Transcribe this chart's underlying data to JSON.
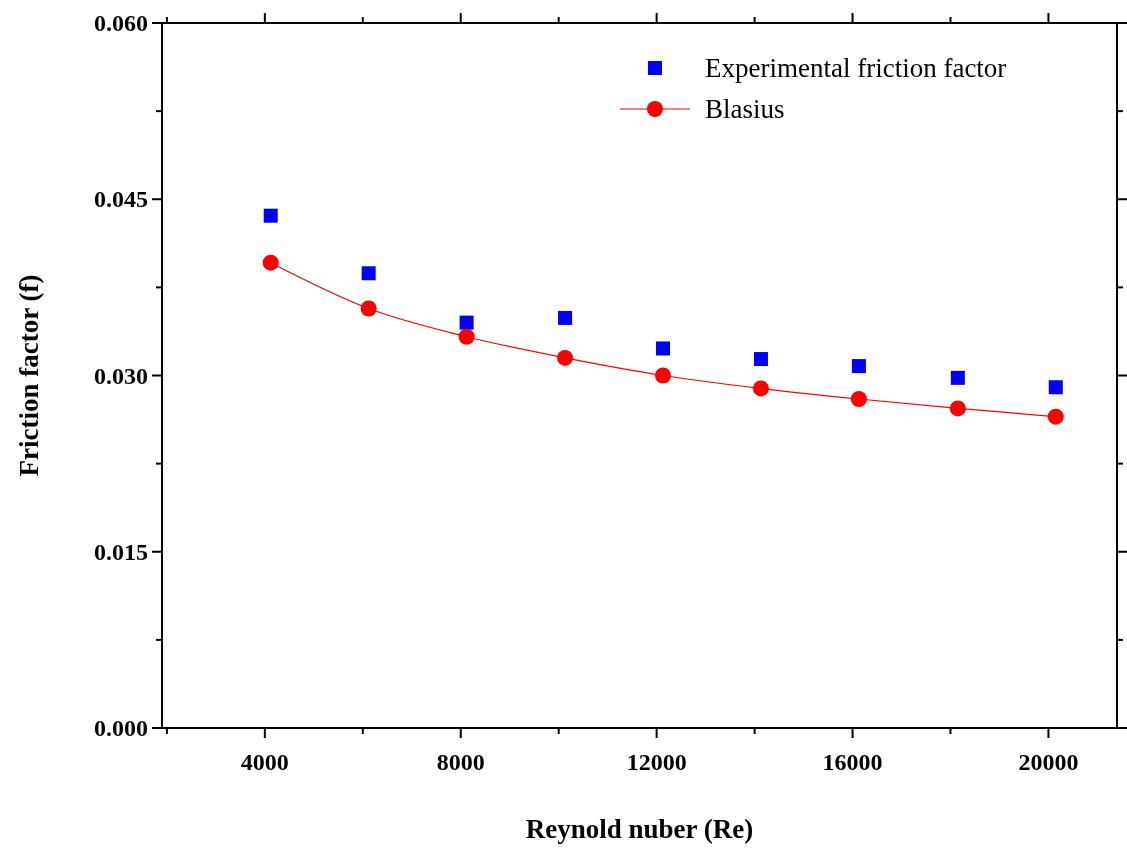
{
  "chart_data": {
    "type": "scatter",
    "xlabel": "Reynold nuber (Re)",
    "ylabel": "Friction factor (f)",
    "x": [
      4120,
      6120,
      8120,
      10130,
      12130,
      14130,
      16130,
      18150,
      20150
    ],
    "xlim": [
      1900,
      21400
    ],
    "xticks": [
      4000,
      8000,
      12000,
      16000,
      20000
    ],
    "ylim": [
      0,
      0.06
    ],
    "yticks": [
      {
        "value": 0,
        "label": "0.000"
      },
      {
        "value": 0.015,
        "label": "0.015"
      },
      {
        "value": 0.03,
        "label": "0.030"
      },
      {
        "value": 0.045,
        "label": "0.045"
      },
      {
        "value": 0.06,
        "label": "0.060"
      }
    ],
    "legend": "top right",
    "grid": false,
    "series": [
      {
        "name": "Experimental friction factor",
        "marker": "square",
        "color": "#0000ff",
        "values": [
          0.0436,
          0.0387,
          0.0345,
          0.0349,
          0.0323,
          0.0314,
          0.0308,
          0.0298,
          0.029
        ]
      },
      {
        "name": "Blasius",
        "type": "line",
        "marker": "circle",
        "color": "#ff0000",
        "values": [
          0.0396,
          0.0357,
          0.0333,
          0.0315,
          0.03,
          0.0289,
          0.028,
          0.0272,
          0.0265
        ]
      }
    ]
  }
}
